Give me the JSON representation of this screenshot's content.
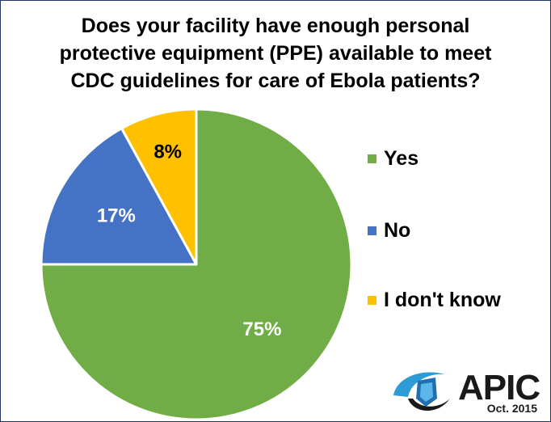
{
  "title_lines": [
    "Does your facility have enough personal",
    "protective equipment (PPE) available to meet",
    "CDC guidelines for care of Ebola patients?"
  ],
  "chart_data": {
    "type": "pie",
    "title": "Does your facility have enough personal protective equipment (PPE) available to meet CDC guidelines for care of Ebola patients?",
    "slices": [
      {
        "label": "Yes",
        "value": 75,
        "value_label": "75%",
        "color": "#70ad47"
      },
      {
        "label": "No",
        "value": 17,
        "value_label": "17%",
        "color": "#4472c4"
      },
      {
        "label": "I don't know",
        "value": 8,
        "value_label": "8%",
        "color": "#ffc000"
      }
    ],
    "legend_placement": "right"
  },
  "branding": {
    "logo_text": "APIC",
    "date": "Oct. 2015"
  }
}
